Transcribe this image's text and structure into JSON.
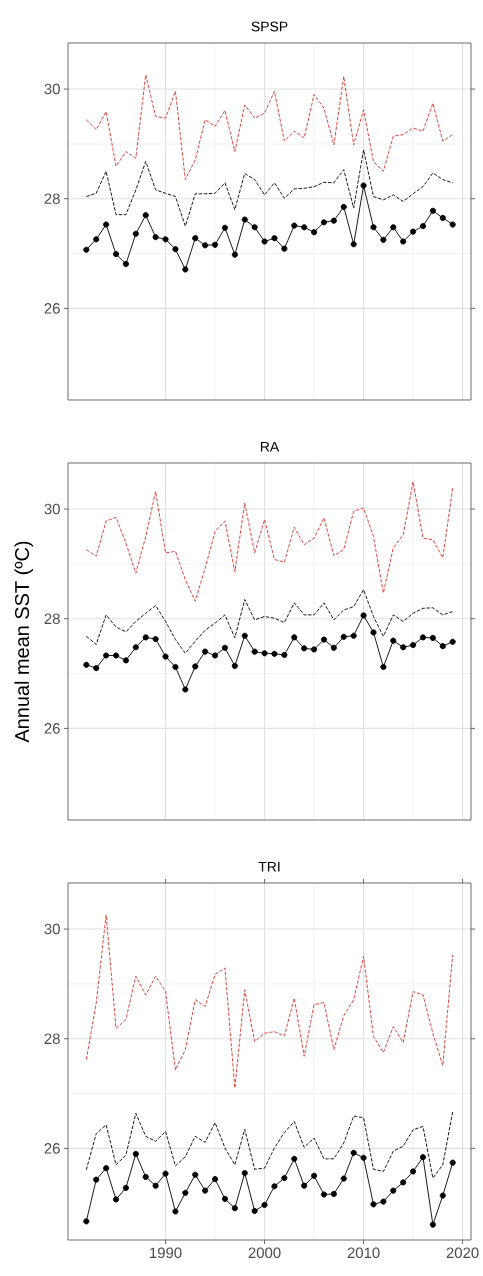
{
  "chart_data": [
    {
      "type": "line",
      "title": "SPSP",
      "x": [
        1982,
        1983,
        1984,
        1985,
        1986,
        1987,
        1988,
        1989,
        1990,
        1991,
        1992,
        1993,
        1994,
        1995,
        1996,
        1997,
        1998,
        1999,
        2000,
        2001,
        2002,
        2003,
        2004,
        2005,
        2006,
        2007,
        2008,
        2009,
        2010,
        2011,
        2012,
        2013,
        2014,
        2015,
        2016,
        2017,
        2018,
        2019
      ],
      "xlim": [
        1980.15,
        2020.85
      ],
      "xticks": [
        1990,
        2000,
        2010,
        2020
      ],
      "ylim": [
        24.33,
        30.84
      ],
      "yticks": [
        26,
        28,
        30
      ],
      "grid": true,
      "tick_labels": "y",
      "series": [
        {
          "color": "#d6352a",
          "line_style": "dashed",
          "marker": "none",
          "values": [
            29.44,
            29.26,
            29.59,
            28.59,
            28.86,
            28.74,
            30.26,
            29.5,
            29.47,
            29.96,
            28.35,
            28.71,
            29.44,
            29.32,
            29.61,
            28.86,
            29.71,
            29.47,
            29.56,
            29.96,
            29.05,
            29.23,
            29.11,
            29.9,
            29.65,
            28.98,
            30.23,
            28.98,
            29.62,
            28.68,
            28.5,
            29.14,
            29.17,
            29.29,
            29.23,
            29.74,
            29.05,
            29.17
          ]
        },
        {
          "color": "#000000",
          "line_style": "dashed",
          "marker": "none",
          "values": [
            28.04,
            28.1,
            28.5,
            27.71,
            27.71,
            28.16,
            28.68,
            28.16,
            28.1,
            28.04,
            27.5,
            28.09,
            28.09,
            28.1,
            28.29,
            27.8,
            28.46,
            28.35,
            28.07,
            28.29,
            28.01,
            28.18,
            28.19,
            28.22,
            28.3,
            28.29,
            28.53,
            27.83,
            28.89,
            28.04,
            27.98,
            28.07,
            27.95,
            28.09,
            28.22,
            28.47,
            28.35,
            28.29
          ]
        },
        {
          "color": "#000000",
          "line_style": "solid",
          "marker": "circle",
          "values": [
            27.07,
            27.26,
            27.53,
            26.99,
            26.81,
            27.36,
            27.7,
            27.3,
            27.26,
            27.08,
            26.71,
            27.28,
            27.15,
            27.16,
            27.47,
            26.98,
            27.62,
            27.48,
            27.22,
            27.28,
            27.09,
            27.51,
            27.48,
            27.39,
            27.57,
            27.6,
            27.85,
            27.17,
            28.24,
            27.48,
            27.25,
            27.48,
            27.22,
            27.4,
            27.5,
            27.78,
            27.65,
            27.53
          ]
        }
      ]
    },
    {
      "type": "line",
      "title": "RA",
      "ylabel": "Annual mean SST (ºC)",
      "x": [
        1982,
        1983,
        1984,
        1985,
        1986,
        1987,
        1988,
        1989,
        1990,
        1991,
        1992,
        1993,
        1994,
        1995,
        1996,
        1997,
        1998,
        1999,
        2000,
        2001,
        2002,
        2003,
        2004,
        2005,
        2006,
        2007,
        2008,
        2009,
        2010,
        2011,
        2012,
        2013,
        2014,
        2015,
        2016,
        2017,
        2018,
        2019
      ],
      "xlim": [
        1980.15,
        2020.85
      ],
      "xticks": [
        1990,
        2000,
        2010,
        2020
      ],
      "ylim": [
        24.33,
        30.84
      ],
      "yticks": [
        26,
        28,
        30
      ],
      "grid": true,
      "tick_labels": "y",
      "series": [
        {
          "color": "#d6352a",
          "line_style": "dashed",
          "marker": "none",
          "values": [
            29.26,
            29.14,
            29.78,
            29.85,
            29.38,
            28.83,
            29.5,
            30.32,
            29.2,
            29.23,
            28.71,
            28.32,
            28.92,
            29.59,
            29.78,
            28.86,
            30.11,
            29.2,
            29.81,
            29.08,
            29.03,
            29.67,
            29.35,
            29.47,
            29.84,
            29.15,
            29.26,
            29.96,
            30.02,
            29.5,
            28.47,
            29.29,
            29.53,
            30.5,
            29.47,
            29.44,
            29.11,
            30.38
          ]
        },
        {
          "color": "#000000",
          "line_style": "dashed",
          "marker": "none",
          "values": [
            27.68,
            27.53,
            28.07,
            27.85,
            27.76,
            27.95,
            28.1,
            28.24,
            27.95,
            27.62,
            27.37,
            27.59,
            27.79,
            27.92,
            28.07,
            27.65,
            28.35,
            27.98,
            28.04,
            28.01,
            27.93,
            28.29,
            28.07,
            28.07,
            28.29,
            27.98,
            28.16,
            28.22,
            28.53,
            28.04,
            27.68,
            28.07,
            27.95,
            28.1,
            28.19,
            28.2,
            28.07,
            28.13
          ]
        },
        {
          "color": "#000000",
          "line_style": "solid",
          "marker": "circle",
          "values": [
            27.16,
            27.1,
            27.33,
            27.33,
            27.24,
            27.48,
            27.66,
            27.63,
            27.31,
            27.12,
            26.71,
            27.13,
            27.4,
            27.33,
            27.47,
            27.14,
            27.69,
            27.4,
            27.37,
            27.36,
            27.34,
            27.66,
            27.46,
            27.44,
            27.62,
            27.47,
            27.67,
            27.69,
            28.06,
            27.75,
            27.12,
            27.6,
            27.48,
            27.52,
            27.66,
            27.65,
            27.5,
            27.58
          ]
        }
      ]
    },
    {
      "type": "line",
      "title": "TRI",
      "x": [
        1982,
        1983,
        1984,
        1985,
        1986,
        1987,
        1988,
        1989,
        1990,
        1991,
        1992,
        1993,
        1994,
        1995,
        1996,
        1997,
        1998,
        1999,
        2000,
        2001,
        2002,
        2003,
        2004,
        2005,
        2006,
        2007,
        2008,
        2009,
        2010,
        2011,
        2012,
        2013,
        2014,
        2015,
        2016,
        2017,
        2018,
        2019
      ],
      "xlim": [
        1980.15,
        2020.85
      ],
      "xticks": [
        1990,
        2000,
        2010,
        2020
      ],
      "ylim": [
        24.33,
        30.84
      ],
      "yticks": [
        26,
        28,
        30
      ],
      "grid": true,
      "series": [
        {
          "color": "#d6352a",
          "line_style": "dashed",
          "marker": "none",
          "values": [
            27.62,
            28.65,
            30.26,
            28.19,
            28.35,
            29.14,
            28.8,
            29.14,
            28.86,
            27.43,
            27.8,
            28.71,
            28.59,
            29.17,
            29.29,
            27.1,
            28.89,
            27.95,
            28.1,
            28.13,
            28.05,
            28.74,
            27.68,
            28.62,
            28.66,
            27.8,
            28.42,
            28.71,
            29.5,
            28.04,
            27.75,
            28.22,
            27.93,
            28.86,
            28.8,
            28.1,
            27.51,
            29.53
          ]
        },
        {
          "color": "#000000",
          "line_style": "dashed",
          "marker": "none",
          "values": [
            25.61,
            26.27,
            26.43,
            25.7,
            25.88,
            26.64,
            26.22,
            26.13,
            26.31,
            25.68,
            25.85,
            26.22,
            26.11,
            26.47,
            26.01,
            25.7,
            26.35,
            25.62,
            25.64,
            26.01,
            26.29,
            26.49,
            26.02,
            26.19,
            25.81,
            25.81,
            26.1,
            26.59,
            26.56,
            25.62,
            25.58,
            25.95,
            26.04,
            26.34,
            26.4,
            25.46,
            25.7,
            26.67
          ]
        },
        {
          "color": "#000000",
          "line_style": "solid",
          "marker": "circle",
          "values": [
            24.67,
            25.43,
            25.64,
            25.07,
            25.28,
            25.9,
            25.48,
            25.32,
            25.54,
            24.85,
            25.19,
            25.52,
            25.23,
            25.44,
            25.08,
            24.91,
            25.55,
            24.86,
            24.97,
            25.31,
            25.46,
            25.81,
            25.32,
            25.5,
            25.16,
            25.17,
            25.45,
            25.92,
            25.83,
            24.98,
            25.03,
            25.23,
            25.38,
            25.58,
            25.84,
            24.61,
            25.14,
            25.74
          ]
        }
      ]
    }
  ]
}
